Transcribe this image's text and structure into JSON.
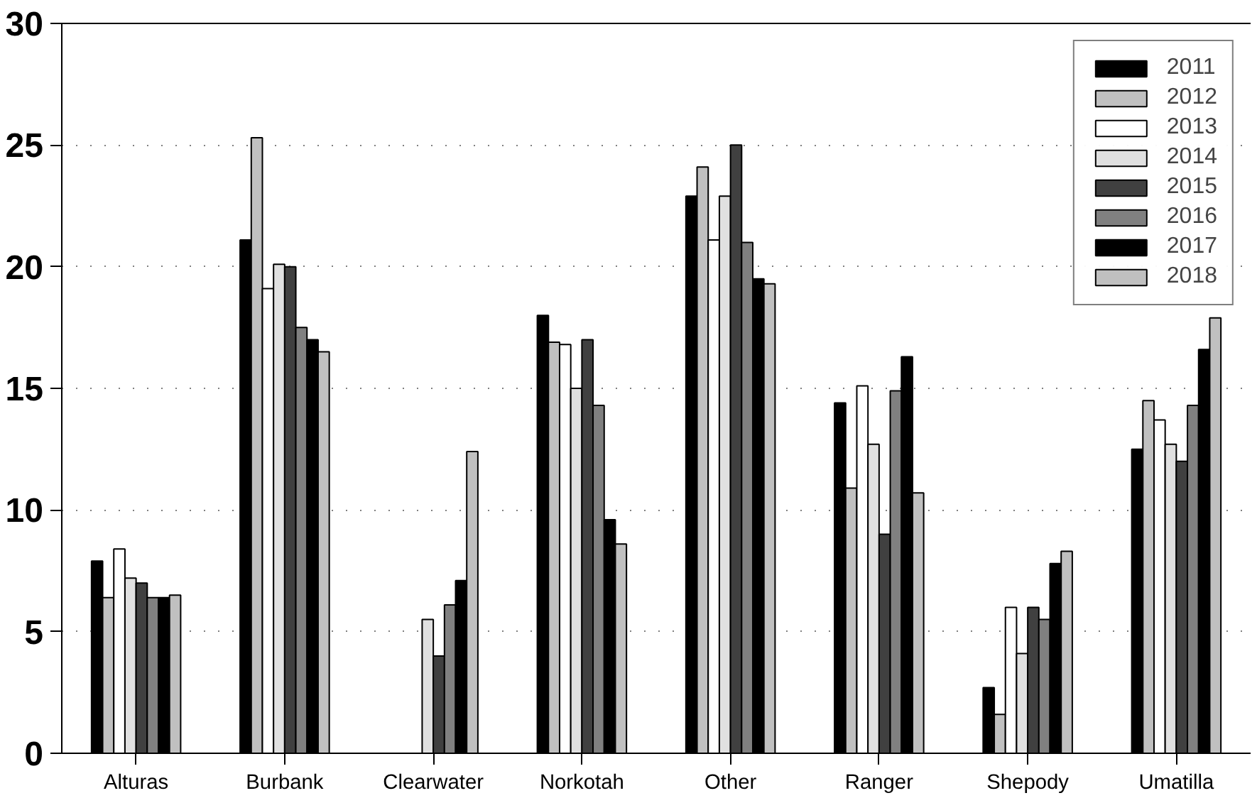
{
  "chart_data": {
    "type": "bar",
    "categories": [
      "Alturas",
      "Burbank",
      "Clearwater",
      "Norkotah",
      "Other",
      "Ranger",
      "Shepody",
      "Umatilla"
    ],
    "ylim": [
      0,
      30
    ],
    "yticks": [
      0,
      5,
      10,
      15,
      20,
      25,
      30
    ],
    "grid": "y",
    "legend": "top right",
    "series": [
      {
        "name": "2011",
        "color": "#000000",
        "values": [
          7.9,
          21.1,
          null,
          18.0,
          22.9,
          14.4,
          2.7,
          12.5
        ]
      },
      {
        "name": "2012",
        "color": "#c0c0c0",
        "values": [
          6.4,
          25.3,
          null,
          16.9,
          24.1,
          10.9,
          1.6,
          14.5
        ]
      },
      {
        "name": "2013",
        "color": "#ffffff",
        "values": [
          8.4,
          19.1,
          null,
          16.8,
          21.1,
          15.1,
          6.0,
          13.7
        ]
      },
      {
        "name": "2014",
        "color": "#e0e0e0",
        "values": [
          7.2,
          20.1,
          5.5,
          15.0,
          22.9,
          12.7,
          4.1,
          12.7
        ]
      },
      {
        "name": "2015",
        "color": "#404040",
        "values": [
          7.0,
          20.0,
          4.0,
          17.0,
          25.0,
          9.0,
          6.0,
          12.0
        ]
      },
      {
        "name": "2016",
        "color": "#808080",
        "values": [
          6.4,
          17.5,
          6.1,
          14.3,
          21.0,
          14.9,
          5.5,
          14.3
        ]
      },
      {
        "name": "2017",
        "color": "#000000",
        "values": [
          6.4,
          17.0,
          7.1,
          9.6,
          19.5,
          16.3,
          7.8,
          16.6
        ]
      },
      {
        "name": "2018",
        "color": "#c0c0c0",
        "values": [
          6.5,
          16.5,
          12.4,
          8.6,
          19.3,
          10.7,
          8.3,
          17.9
        ]
      }
    ]
  }
}
